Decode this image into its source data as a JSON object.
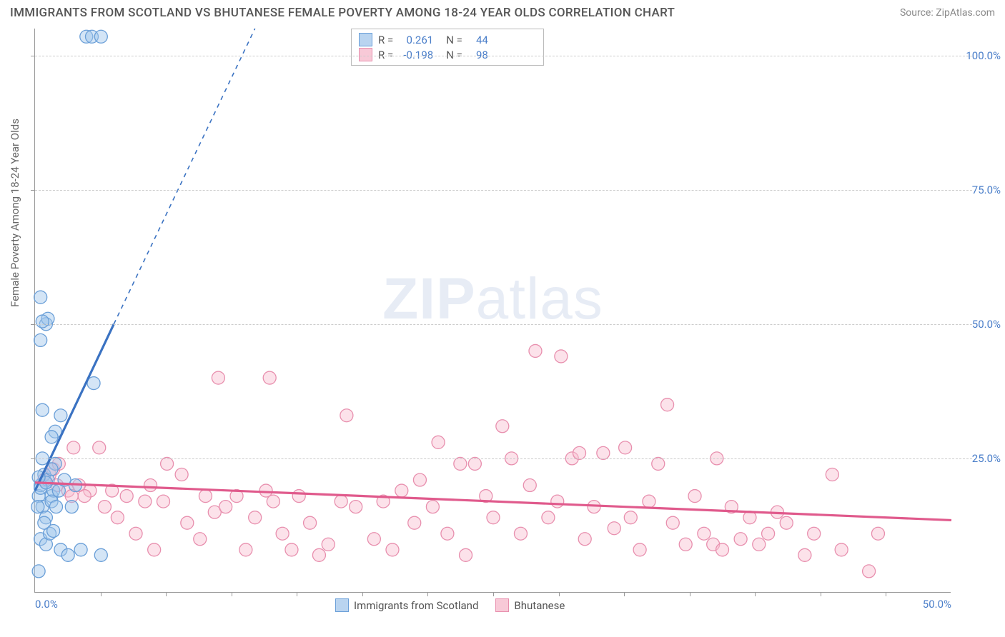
{
  "header": {
    "title": "IMMIGRANTS FROM SCOTLAND VS BHUTANESE FEMALE POVERTY AMONG 18-24 YEAR OLDS CORRELATION CHART",
    "source": "Source: ZipAtlas.com"
  },
  "chart": {
    "type": "scatter",
    "y_axis_label": "Female Poverty Among 18-24 Year Olds",
    "watermark_left": "ZIP",
    "watermark_right": "atlas",
    "background_color": "#ffffff",
    "grid_color": "#cccccc",
    "axis_color": "#999999",
    "tick_color": "#4a7ec9",
    "x_range": [
      0,
      50
    ],
    "y_range": [
      0,
      105
    ],
    "y_ticks": [
      25,
      50,
      75,
      100
    ],
    "y_tick_labels": [
      "25.0%",
      "50.0%",
      "75.0%",
      "100.0%"
    ],
    "x_ticks": [
      0,
      50
    ],
    "x_tick_labels": [
      "0.0%",
      "50.0%"
    ],
    "x_minor_ticks": [
      3.57,
      7.14,
      10.71,
      14.29,
      17.86,
      21.43,
      25,
      28.57,
      32.14,
      35.71,
      39.29,
      42.86,
      46.43
    ],
    "legend_top": [
      {
        "swatch_fill": "#b9d4f0",
        "swatch_border": "#6a9fd8",
        "r_label": "R =",
        "r_val": "0.261",
        "n_label": "N =",
        "n_val": "44"
      },
      {
        "swatch_fill": "#f8c9d7",
        "swatch_border": "#e88fae",
        "r_label": "R =",
        "r_val": "-0.198",
        "n_label": "N =",
        "n_val": "98"
      }
    ],
    "legend_bottom": [
      {
        "swatch_fill": "#b9d4f0",
        "swatch_border": "#6a9fd8",
        "label": "Immigrants from Scotland"
      },
      {
        "swatch_fill": "#f8c9d7",
        "swatch_border": "#e88fae",
        "label": "Bhutanese"
      }
    ],
    "series": [
      {
        "name": "Immigrants from Scotland",
        "fill": "rgba(160,198,236,0.45)",
        "stroke": "#6a9fd8",
        "marker_r": 9,
        "trend_color": "#3a72c2",
        "trend_solid": {
          "x1": 0,
          "y1": 19,
          "x2": 4.3,
          "y2": 50
        },
        "trend_dash": {
          "x1": 4.3,
          "y1": 50,
          "x2": 12,
          "y2": 105
        },
        "points": [
          [
            0.2,
            18
          ],
          [
            0.3,
            20
          ],
          [
            0.4,
            16
          ],
          [
            0.5,
            22
          ],
          [
            0.6,
            14
          ],
          [
            0.7,
            21
          ],
          [
            0.9,
            18
          ],
          [
            1.0,
            19
          ],
          [
            1.1,
            24
          ],
          [
            0.4,
            25
          ],
          [
            0.3,
            10
          ],
          [
            0.6,
            9
          ],
          [
            0.8,
            11
          ],
          [
            1.4,
            8
          ],
          [
            1.8,
            7
          ],
          [
            2.5,
            8
          ],
          [
            3.6,
            7
          ],
          [
            0.2,
            4
          ],
          [
            0.9,
            23
          ],
          [
            1.1,
            30
          ],
          [
            1.4,
            33
          ],
          [
            0.4,
            34
          ],
          [
            0.3,
            47
          ],
          [
            0.6,
            50
          ],
          [
            0.7,
            51
          ],
          [
            0.3,
            55
          ],
          [
            0.4,
            50.5
          ],
          [
            2.8,
            103.5
          ],
          [
            3.1,
            103.5
          ],
          [
            3.6,
            103.5
          ],
          [
            3.2,
            39
          ],
          [
            0.9,
            29
          ],
          [
            1.3,
            19
          ],
          [
            0.5,
            13
          ],
          [
            1.0,
            11.5
          ],
          [
            2.0,
            16
          ],
          [
            2.2,
            20
          ],
          [
            1.6,
            21
          ],
          [
            0.3,
            19.5
          ],
          [
            0.6,
            20.5
          ],
          [
            0.2,
            21.5
          ],
          [
            0.9,
            17
          ],
          [
            1.15,
            16
          ],
          [
            0.15,
            16
          ]
        ]
      },
      {
        "name": "Bhutanese",
        "fill": "rgba(248,190,208,0.45)",
        "stroke": "#e88fae",
        "marker_r": 9,
        "trend_color": "#e05a8c",
        "trend_solid": {
          "x1": 0,
          "y1": 20.5,
          "x2": 50,
          "y2": 13.5
        },
        "points": [
          [
            0.5,
            21
          ],
          [
            0.8,
            22
          ],
          [
            1.0,
            23
          ],
          [
            1.2,
            20
          ],
          [
            1.8,
            19
          ],
          [
            2.0,
            18
          ],
          [
            2.4,
            20
          ],
          [
            3.0,
            19
          ],
          [
            2.1,
            27
          ],
          [
            3.5,
            27
          ],
          [
            4.5,
            14
          ],
          [
            5.0,
            18
          ],
          [
            5.5,
            11
          ],
          [
            6.0,
            17
          ],
          [
            6.3,
            20
          ],
          [
            6.5,
            8
          ],
          [
            7.0,
            17
          ],
          [
            7.2,
            24
          ],
          [
            8.0,
            22
          ],
          [
            8.3,
            13
          ],
          [
            9.0,
            10
          ],
          [
            9.3,
            18
          ],
          [
            9.8,
            15
          ],
          [
            10.4,
            16
          ],
          [
            10.0,
            40
          ],
          [
            11.0,
            18
          ],
          [
            11.5,
            8
          ],
          [
            12.0,
            14
          ],
          [
            12.6,
            19
          ],
          [
            13.0,
            17
          ],
          [
            12.8,
            40
          ],
          [
            13.5,
            11
          ],
          [
            14.0,
            8
          ],
          [
            14.4,
            18
          ],
          [
            15.0,
            13
          ],
          [
            15.5,
            7
          ],
          [
            16.0,
            9
          ],
          [
            16.7,
            17
          ],
          [
            17.0,
            33
          ],
          [
            17.5,
            16
          ],
          [
            18.5,
            10
          ],
          [
            19.0,
            17
          ],
          [
            19.5,
            8
          ],
          [
            20.0,
            19
          ],
          [
            20.7,
            13
          ],
          [
            21.0,
            21
          ],
          [
            21.7,
            16
          ],
          [
            22.0,
            28
          ],
          [
            22.5,
            11
          ],
          [
            23.2,
            24
          ],
          [
            23.5,
            7
          ],
          [
            24.0,
            24
          ],
          [
            24.6,
            18
          ],
          [
            25.0,
            14
          ],
          [
            25.5,
            31
          ],
          [
            26.0,
            25
          ],
          [
            26.5,
            11
          ],
          [
            27.0,
            20
          ],
          [
            27.3,
            45
          ],
          [
            28.0,
            14
          ],
          [
            28.5,
            17
          ],
          [
            28.7,
            44
          ],
          [
            29.3,
            25
          ],
          [
            29.7,
            26
          ],
          [
            30.0,
            10
          ],
          [
            30.5,
            16
          ],
          [
            31.0,
            26
          ],
          [
            31.6,
            12
          ],
          [
            32.2,
            27
          ],
          [
            32.5,
            14
          ],
          [
            33.0,
            8
          ],
          [
            33.5,
            17
          ],
          [
            34.0,
            24
          ],
          [
            34.5,
            35
          ],
          [
            34.8,
            13
          ],
          [
            35.5,
            9
          ],
          [
            36.0,
            18
          ],
          [
            36.5,
            11
          ],
          [
            37.0,
            9
          ],
          [
            37.5,
            8
          ],
          [
            38.0,
            16
          ],
          [
            38.5,
            10
          ],
          [
            39.0,
            14
          ],
          [
            39.5,
            9
          ],
          [
            40.0,
            11
          ],
          [
            40.5,
            15
          ],
          [
            41.0,
            13
          ],
          [
            42.0,
            7
          ],
          [
            42.5,
            11
          ],
          [
            43.5,
            22
          ],
          [
            44.0,
            8
          ],
          [
            45.5,
            4
          ],
          [
            46.0,
            11
          ],
          [
            37.2,
            25
          ],
          [
            1.3,
            24
          ],
          [
            3.8,
            16
          ],
          [
            4.2,
            19
          ],
          [
            2.7,
            18
          ]
        ]
      }
    ]
  }
}
